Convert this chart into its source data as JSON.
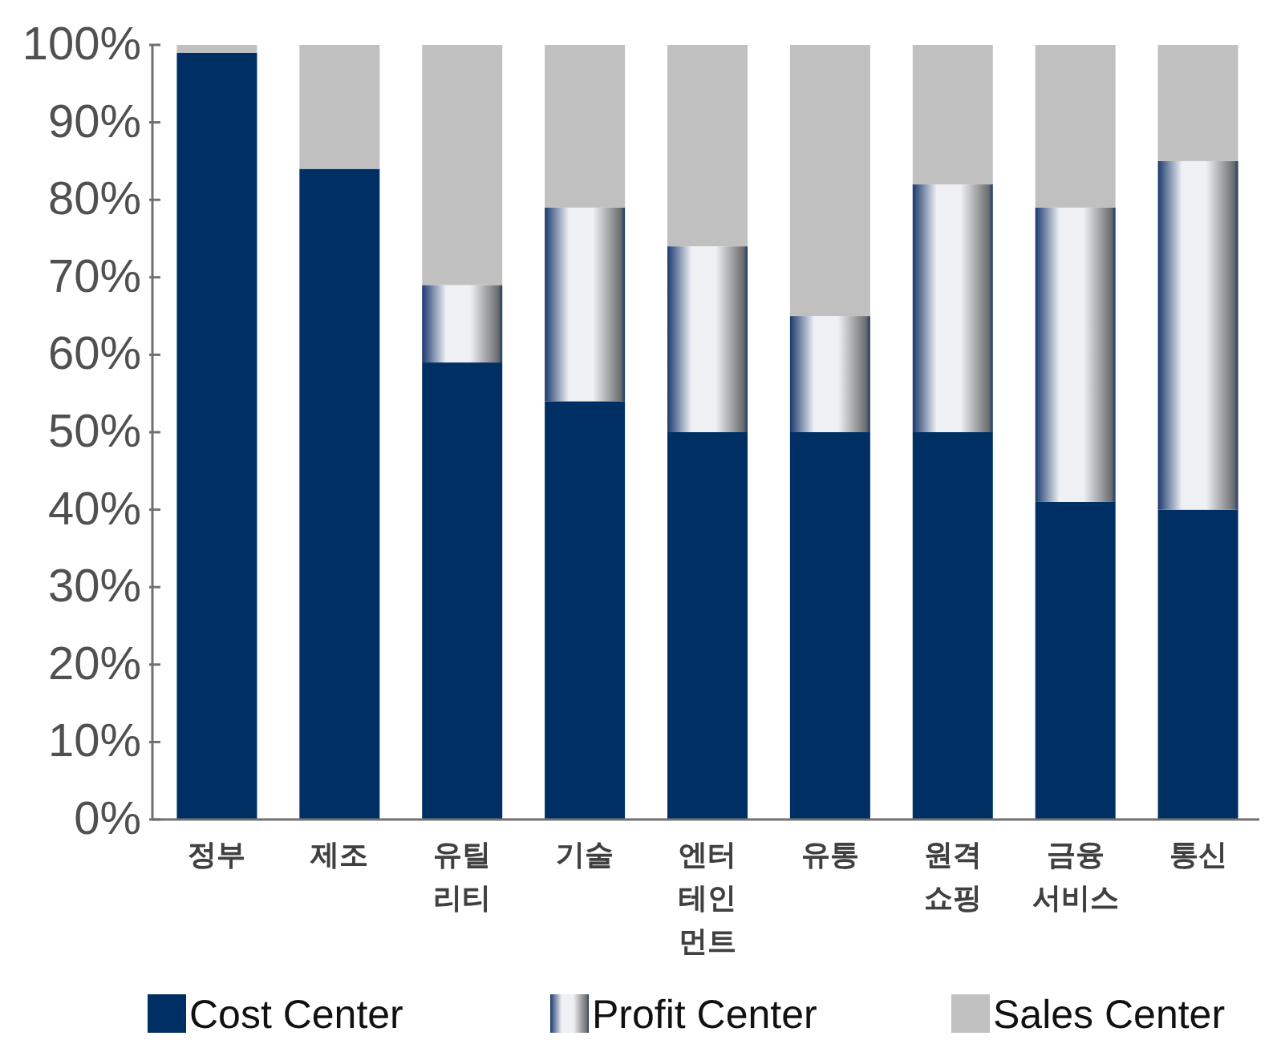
{
  "chart_data": {
    "type": "bar",
    "stacked": true,
    "categories": [
      "정부",
      "제조",
      "유틸리티",
      "기술",
      "엔터테인먼트",
      "유통",
      "원격쇼핑",
      "금융 서비스",
      "통신"
    ],
    "series": [
      {
        "name": "Cost Center",
        "color": "#003063",
        "values": [
          99,
          84,
          59,
          54,
          50,
          50,
          50,
          41,
          40
        ]
      },
      {
        "name": "Profit Center",
        "color": "#eef0f4",
        "values": [
          0,
          0,
          10,
          25,
          24,
          15,
          32,
          38,
          45
        ]
      },
      {
        "name": "Sales Center",
        "color": "#c0c0c0",
        "values": [
          1,
          16,
          31,
          21,
          26,
          35,
          18,
          21,
          15
        ]
      }
    ],
    "ylim": [
      0,
      100
    ],
    "yticks": [
      {
        "value": 0,
        "label": "0%"
      },
      {
        "value": 10,
        "label": "10%"
      },
      {
        "value": 20,
        "label": "20%"
      },
      {
        "value": 30,
        "label": "30%"
      },
      {
        "value": 40,
        "label": "40%"
      },
      {
        "value": 50,
        "label": "50%"
      },
      {
        "value": 60,
        "label": "60%"
      },
      {
        "value": 70,
        "label": "70%"
      },
      {
        "value": 80,
        "label": "80%"
      },
      {
        "value": 90,
        "label": "90%"
      },
      {
        "value": 100,
        "label": "100%"
      }
    ],
    "grid": false,
    "legend": "bottom"
  }
}
